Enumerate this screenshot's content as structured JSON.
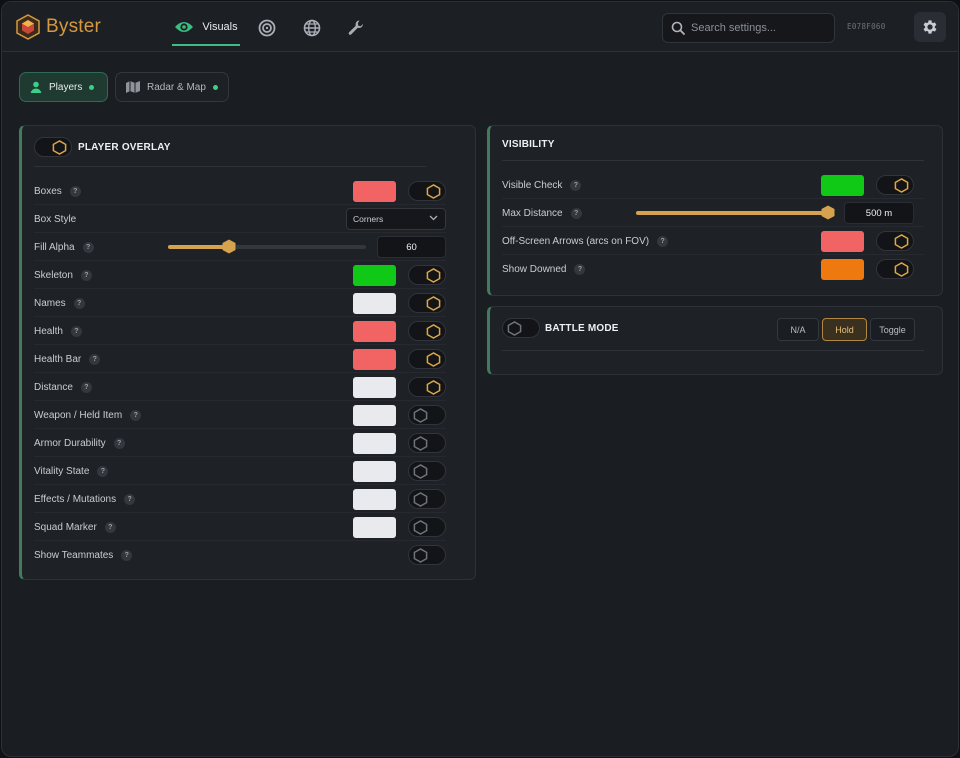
{
  "app": {
    "name": "Byster",
    "hwid": "E078F060"
  },
  "nav": {
    "active_label": "Visuals",
    "tabs": [
      {
        "id": "visuals",
        "label": "Visuals",
        "icon": "eye-icon"
      },
      {
        "id": "aimbot",
        "icon": "target-icon"
      },
      {
        "id": "world",
        "icon": "globe-icon"
      },
      {
        "id": "misc",
        "icon": "wrench-icon"
      }
    ]
  },
  "search": {
    "placeholder": "Search settings..."
  },
  "subtabs": [
    {
      "label": "Players",
      "active": true,
      "icon": "user-icon"
    },
    {
      "label": "Radar & Map",
      "active": false,
      "icon": "map-icon"
    }
  ],
  "colors": {
    "accent": "#d7a24e",
    "green_accent": "#3bbd84",
    "red": "#f26464",
    "green": "#10c916",
    "white": "#e8eaed",
    "orange": "#ee7a0f"
  },
  "overlay": {
    "title": "PLAYER OVERLAY",
    "enabled": true,
    "rows": [
      {
        "label": "Boxes",
        "help": "?",
        "color": "#f26464",
        "enabled": true
      },
      {
        "label": "Box Style",
        "select": "Corners"
      },
      {
        "label": "Fill Alpha",
        "help": "?",
        "value": "60",
        "fraction": 0.31
      },
      {
        "label": "Skeleton",
        "help": "?",
        "color": "#10c916",
        "enabled": true
      },
      {
        "label": "Names",
        "help": "?",
        "color": "#e8eaed",
        "enabled": true
      },
      {
        "label": "Health",
        "help": "?",
        "color": "#f26464",
        "enabled": true
      },
      {
        "label": "Health Bar",
        "help": "?",
        "color": "#f26464",
        "enabled": true
      },
      {
        "label": "Distance",
        "help": "?",
        "color": "#e8eaed",
        "enabled": true
      },
      {
        "label": "Weapon / Held Item",
        "help": "?",
        "color": "#e8eaed",
        "enabled": false
      },
      {
        "label": "Armor Durability",
        "help": "?",
        "color": "#e8eaed",
        "enabled": false
      },
      {
        "label": "Vitality State",
        "help": "?",
        "color": "#e8eaed",
        "enabled": false
      },
      {
        "label": "Effects / Mutations",
        "help": "?",
        "color": "#e8eaed",
        "enabled": false
      },
      {
        "label": "Squad Marker",
        "help": "?",
        "color": "#e8eaed",
        "enabled": false
      },
      {
        "label": "Show Teammates",
        "help": "?",
        "enabled": false
      }
    ]
  },
  "visibility": {
    "title": "VISIBILITY",
    "rows": [
      {
        "label": "Visible Check",
        "help": "?",
        "color": "#10c916",
        "enabled": true
      },
      {
        "label": "Max Distance",
        "help": "?",
        "value": "500 m",
        "fraction": 1.0
      },
      {
        "label": "Off-Screen Arrows (arcs on FOV)",
        "help": "?",
        "color": "#f26464",
        "enabled": true
      },
      {
        "label": "Show Downed",
        "help": "?",
        "color": "#ee7a0f",
        "enabled": true
      }
    ]
  },
  "battle": {
    "title": "BATTLE MODE",
    "enabled": false,
    "options": [
      {
        "label": "N/A",
        "active": false
      },
      {
        "label": "Hold",
        "active": true
      },
      {
        "label": "Toggle",
        "active": false
      }
    ]
  }
}
